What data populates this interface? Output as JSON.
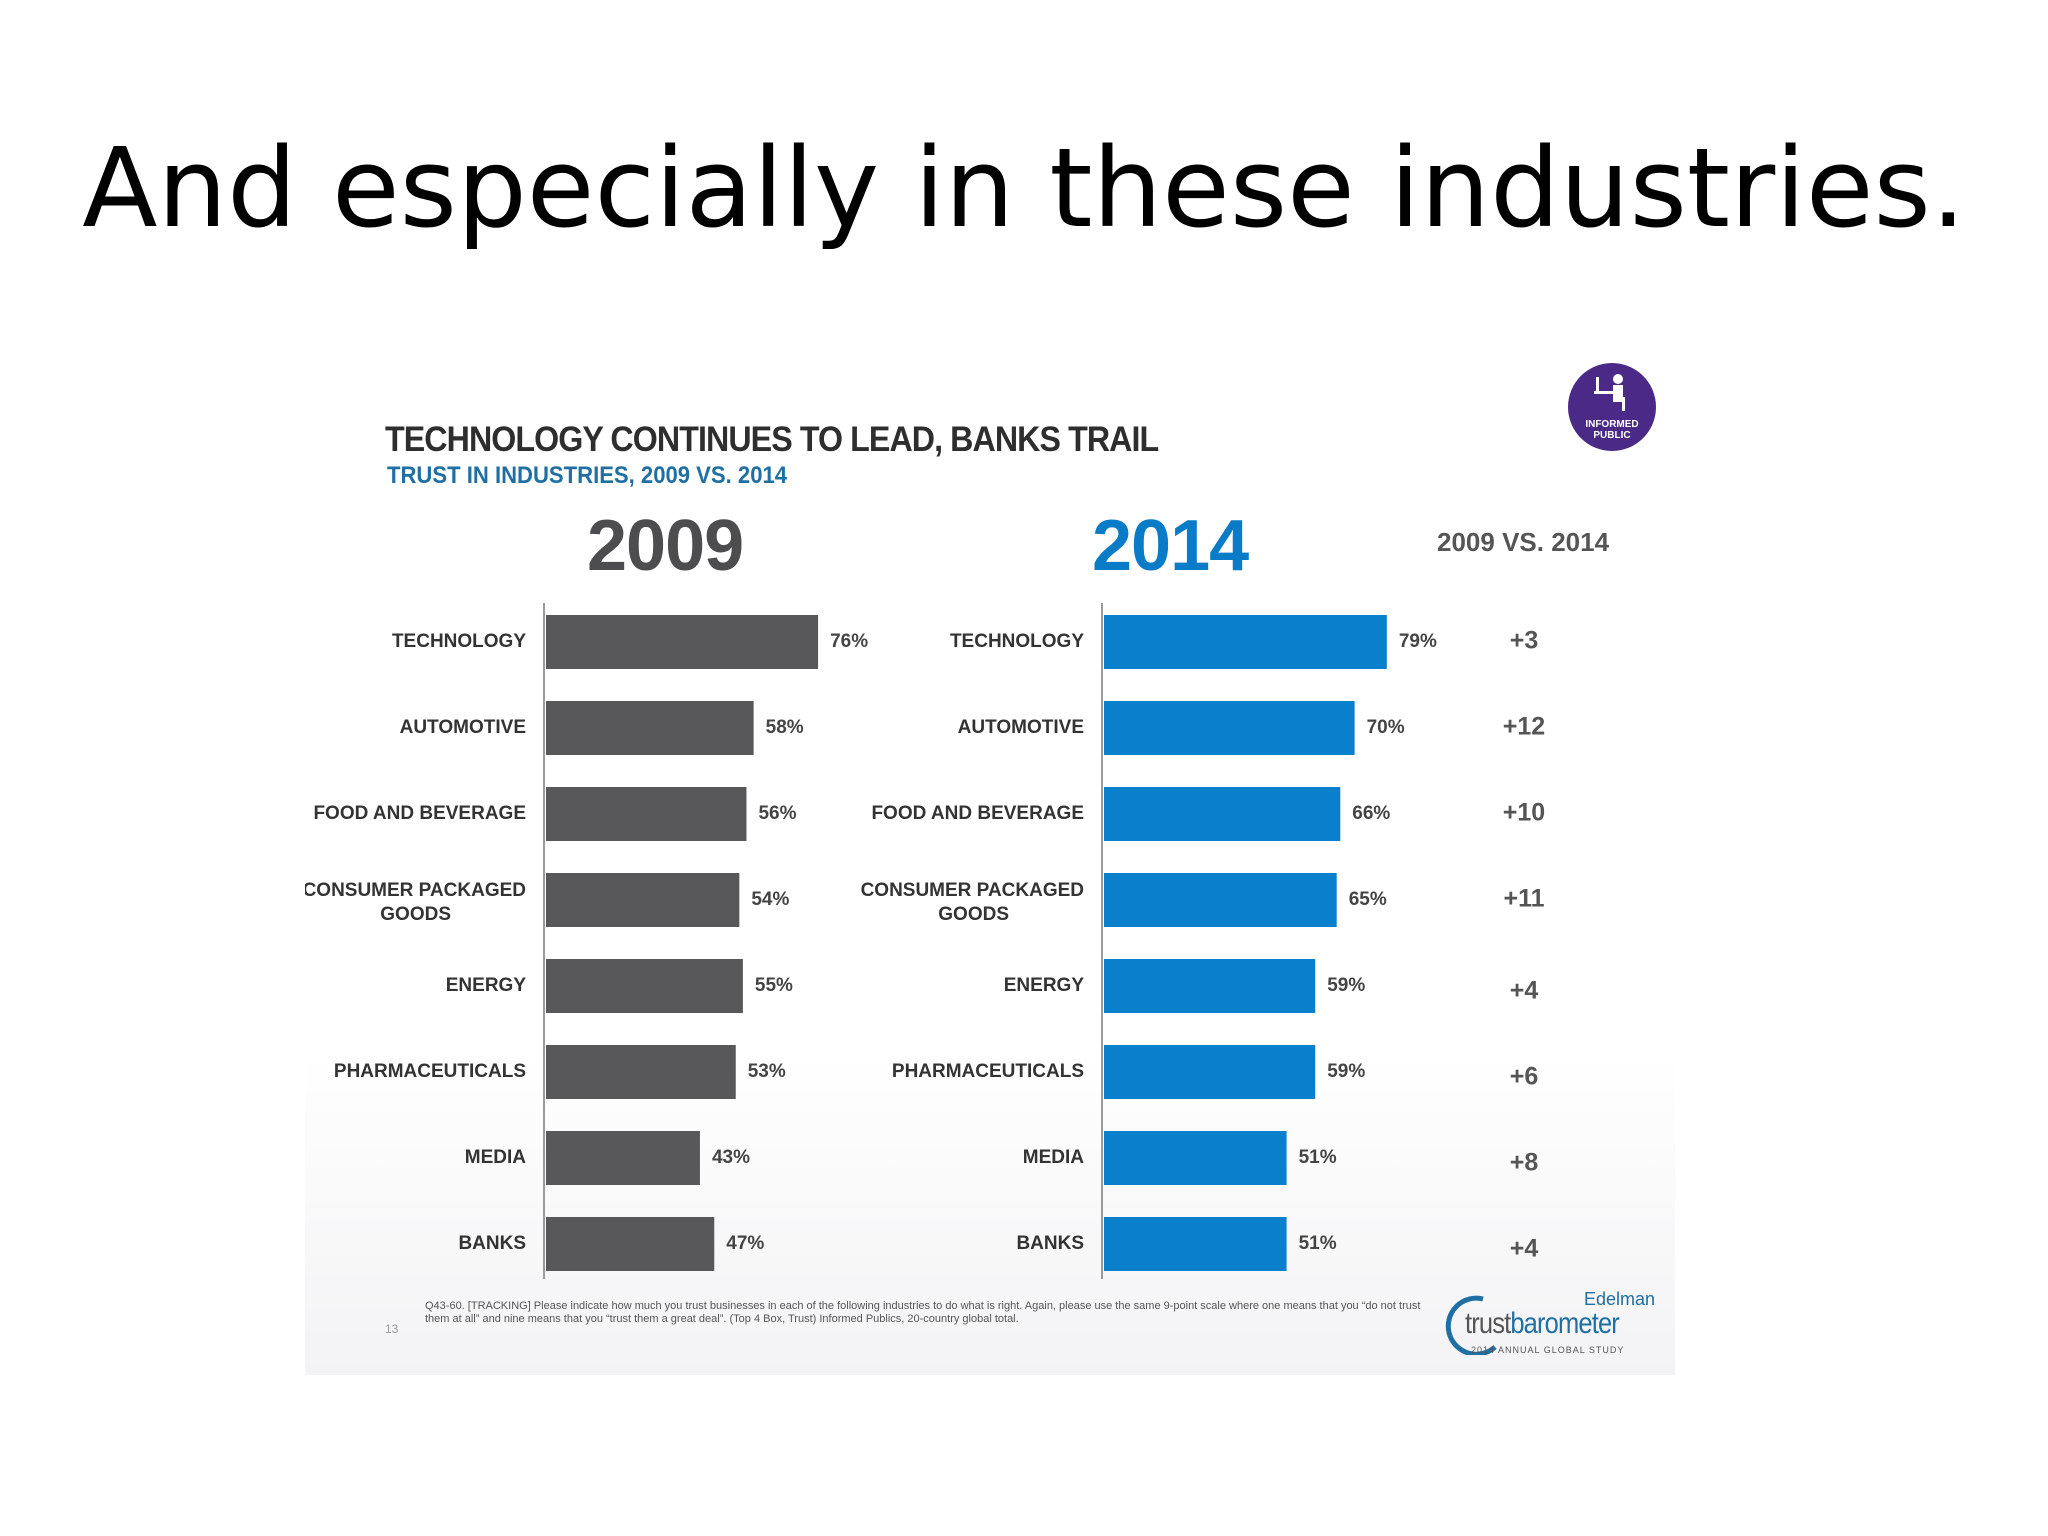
{
  "slide": {
    "title": "And especially in these industries."
  },
  "header": {
    "title": "TECHNOLOGY CONTINUES TO LEAD, BANKS TRAIL",
    "subtitle": "TRUST IN INDUSTRIES, 2009 VS. 2014"
  },
  "badge": {
    "line1": "INFORMED",
    "line2": "PUBLIC"
  },
  "columns": {
    "left_year": "2009",
    "right_year": "2014",
    "change_header": "2009 VS. 2014"
  },
  "colors": {
    "bar_2009": "#58585a",
    "bar_2014": "#0a7fcc",
    "accent_blue": "#1f6fa3"
  },
  "chart_data": {
    "type": "bar",
    "orientation": "horizontal",
    "title": "TECHNOLOGY CONTINUES TO LEAD, BANKS TRAIL",
    "subtitle": "TRUST IN INDUSTRIES, 2009 VS. 2014",
    "categories": [
      [
        "TECHNOLOGY"
      ],
      [
        "AUTOMOTIVE"
      ],
      [
        "FOOD AND BEVERAGE"
      ],
      [
        "CONSUMER PACKAGED",
        "GOODS"
      ],
      [
        "ENERGY"
      ],
      [
        "PHARMACEUTICALS"
      ],
      [
        "MEDIA"
      ],
      [
        "BANKS"
      ]
    ],
    "series": [
      {
        "name": "2009",
        "values": [
          76,
          58,
          56,
          54,
          55,
          53,
          43,
          47
        ],
        "labels": [
          "76%",
          "58%",
          "56%",
          "54%",
          "55%",
          "53%",
          "43%",
          "47%"
        ]
      },
      {
        "name": "2014",
        "values": [
          79,
          70,
          66,
          65,
          59,
          59,
          51,
          51
        ],
        "labels": [
          "79%",
          "70%",
          "66%",
          "65%",
          "59%",
          "59%",
          "51%",
          "51%"
        ]
      }
    ],
    "change": [
      "+3",
      "+12",
      "+10",
      "+11",
      "+4",
      "+6",
      "+8",
      "+4"
    ],
    "unit": "%"
  },
  "footnote": {
    "text": "Q43-60. [TRACKING] Please indicate how much you trust businesses in each of the following industries to do what is right.  Again, please use the same 9-point scale where one means that you “do not trust them at all” and nine means that you “trust them a great deal”. (Top 4 Box, Trust) Informed Publics, 20-country global total.",
    "page_number": "13"
  },
  "logo": {
    "edelman": "Edelman",
    "trust": "trust",
    "barometer": "barometer",
    "year": "2014",
    "study": "ANNUAL GLOBAL STUDY"
  }
}
